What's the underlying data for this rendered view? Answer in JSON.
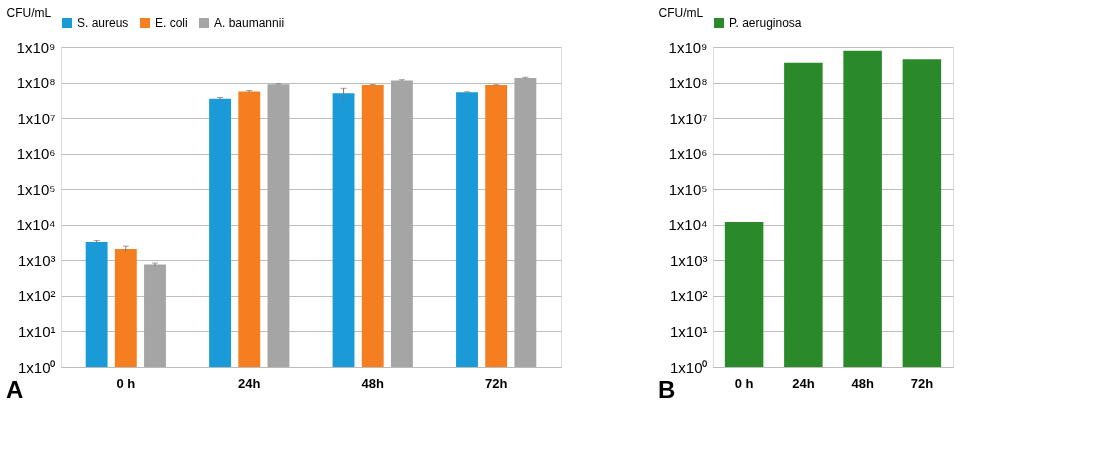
{
  "chart_data": [
    {
      "type": "bar",
      "ylabel": "CFU/mL",
      "categories": [
        "0 h",
        "24h",
        "48h",
        "72h"
      ],
      "log": true,
      "grid": "y",
      "legend": "top",
      "ylim": [
        1,
        1000000000
      ],
      "yticks": [
        {
          "value": 1,
          "label": "1x10⁰"
        },
        {
          "value": 10,
          "label": "1x10¹"
        },
        {
          "value": 100,
          "label": "1x10²"
        },
        {
          "value": 1000,
          "label": "1x10³"
        },
        {
          "value": 10000,
          "label": "1x10⁴"
        },
        {
          "value": 100000,
          "label": "1x10⁵"
        },
        {
          "value": 1000000,
          "label": "1x10⁶"
        },
        {
          "value": 10000000,
          "label": "1x10⁷"
        },
        {
          "value": 100000000,
          "label": "1x10⁸"
        },
        {
          "value": 1000000000,
          "label": "1x10⁹"
        }
      ],
      "series": [
        {
          "name": "S. aureus",
          "color": "#1a9ad6",
          "values": [
            3300,
            35000000,
            50000000,
            53000000
          ],
          "errors": [
            300,
            3000000,
            19000000,
            2000000
          ]
        },
        {
          "name": "E. coli",
          "color": "#f57f20",
          "values": [
            2100,
            56000000,
            85000000,
            85000000
          ],
          "errors": [
            400,
            4000000,
            3000000,
            2000000
          ]
        },
        {
          "name": "A. baumannii",
          "color": "#a5a5a5",
          "values": [
            760,
            90000000,
            115000000,
            135000000
          ],
          "errors": [
            80,
            3000000,
            5000000,
            6000000
          ]
        }
      ],
      "annotations": [
        "A"
      ]
    },
    {
      "type": "bar",
      "ylabel": "CFU/mL",
      "categories": [
        "0 h",
        "24h",
        "48h",
        "72h"
      ],
      "log": true,
      "grid": "y",
      "legend": "top",
      "ylim": [
        1,
        1000000000
      ],
      "yticks": [
        {
          "value": 1,
          "label": "1x10⁰"
        },
        {
          "value": 10,
          "label": "1x10¹"
        },
        {
          "value": 100,
          "label": "1x10²"
        },
        {
          "value": 1000,
          "label": "1x10³"
        },
        {
          "value": 10000,
          "label": "1x10⁴"
        },
        {
          "value": 100000,
          "label": "1x10⁵"
        },
        {
          "value": 1000000,
          "label": "1x10⁶"
        },
        {
          "value": 10000000,
          "label": "1x10⁷"
        },
        {
          "value": 100000000,
          "label": "1x10⁸"
        },
        {
          "value": 1000000000,
          "label": "1x10⁹"
        }
      ],
      "series": [
        {
          "name": "P. aeruginosa",
          "color": "#2a8a2a",
          "values": [
            12000,
            360000000,
            780000000,
            450000000
          ]
        }
      ],
      "annotations": [
        "B"
      ]
    }
  ]
}
